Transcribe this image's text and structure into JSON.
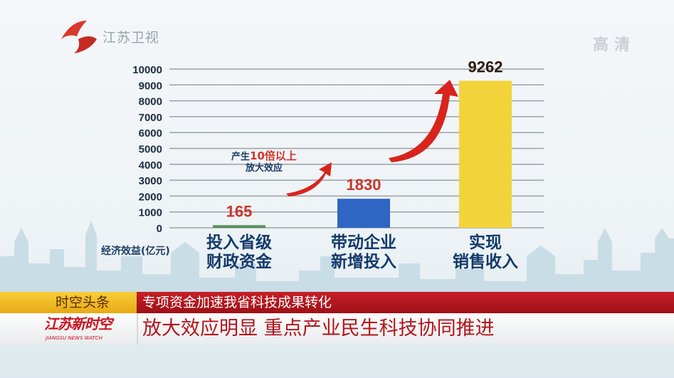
{
  "channel": {
    "logo_text": "江苏卫视",
    "quality_badge": "高清"
  },
  "chart_data": {
    "type": "bar",
    "categories": [
      "投入省级\n财政资金",
      "带动企业\n新增投入",
      "实现\n销售收入"
    ],
    "values": [
      165,
      1830,
      9262
    ],
    "data_labels": [
      "165",
      "1830",
      "9262"
    ],
    "bar_colors": [
      "#5a8f5e",
      "#2f66c4",
      "#f2d43a"
    ],
    "ylabel": "经济效益(亿元)",
    "ylim": [
      0,
      10000
    ],
    "yticks": [
      "0",
      "1000",
      "2000",
      "3000",
      "4000",
      "5000",
      "6000",
      "7000",
      "8000",
      "9000",
      "10000"
    ],
    "grid": true,
    "annotation": {
      "prefix": "产生",
      "highlight": "10倍以上",
      "line2": "放大效应"
    }
  },
  "ticker": {
    "section": "时空头条",
    "top_line": "专项资金加速我省科技成果转化",
    "program": "江苏新时空",
    "program_en": "JIANGSU NEWS WATCH",
    "headline": "放大效应明显  重点产业民生科技协同推进"
  },
  "colors": {
    "accent_red": "#c61f27",
    "label_red": "#d5332a",
    "axis_text": "#1d2d44"
  }
}
